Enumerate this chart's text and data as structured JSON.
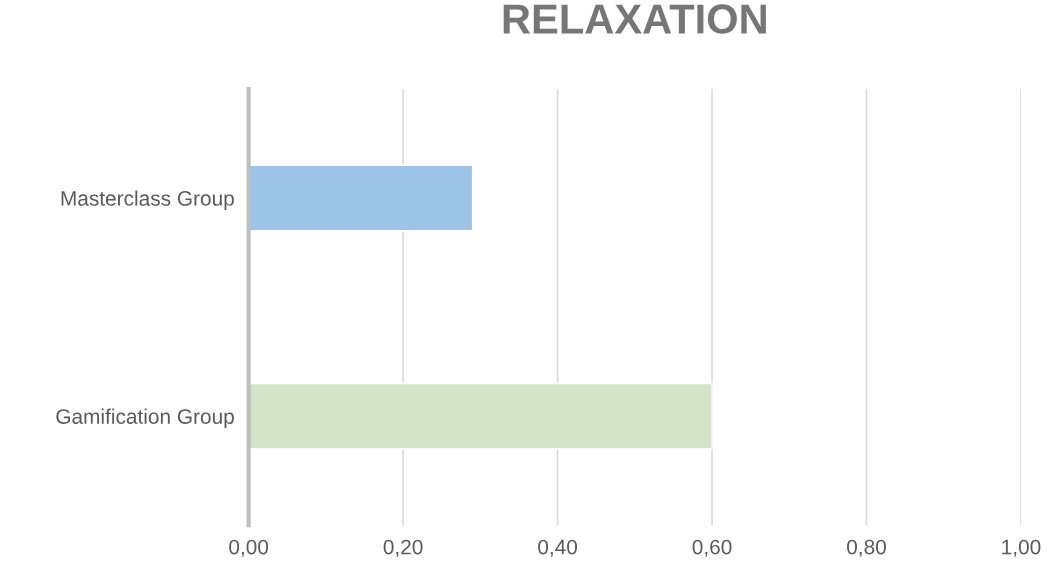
{
  "chart_data": {
    "type": "bar",
    "orientation": "horizontal",
    "title": "RELAXATION",
    "categories": [
      "Masterclass Group",
      "Gamification Group"
    ],
    "values": [
      0.29,
      0.6
    ],
    "colors": [
      "#9dc3e6",
      "#d3e5c8"
    ],
    "xlim": [
      0,
      1.0
    ],
    "xticks": [
      {
        "value": 0,
        "label": "0,00"
      },
      {
        "value": 0.2,
        "label": "0,20"
      },
      {
        "value": 0.4,
        "label": "0,40"
      },
      {
        "value": 0.6,
        "label": "0,60"
      },
      {
        "value": 0.8,
        "label": "0,80"
      },
      {
        "value": 1.0,
        "label": "1,00"
      }
    ],
    "grid": "x"
  }
}
